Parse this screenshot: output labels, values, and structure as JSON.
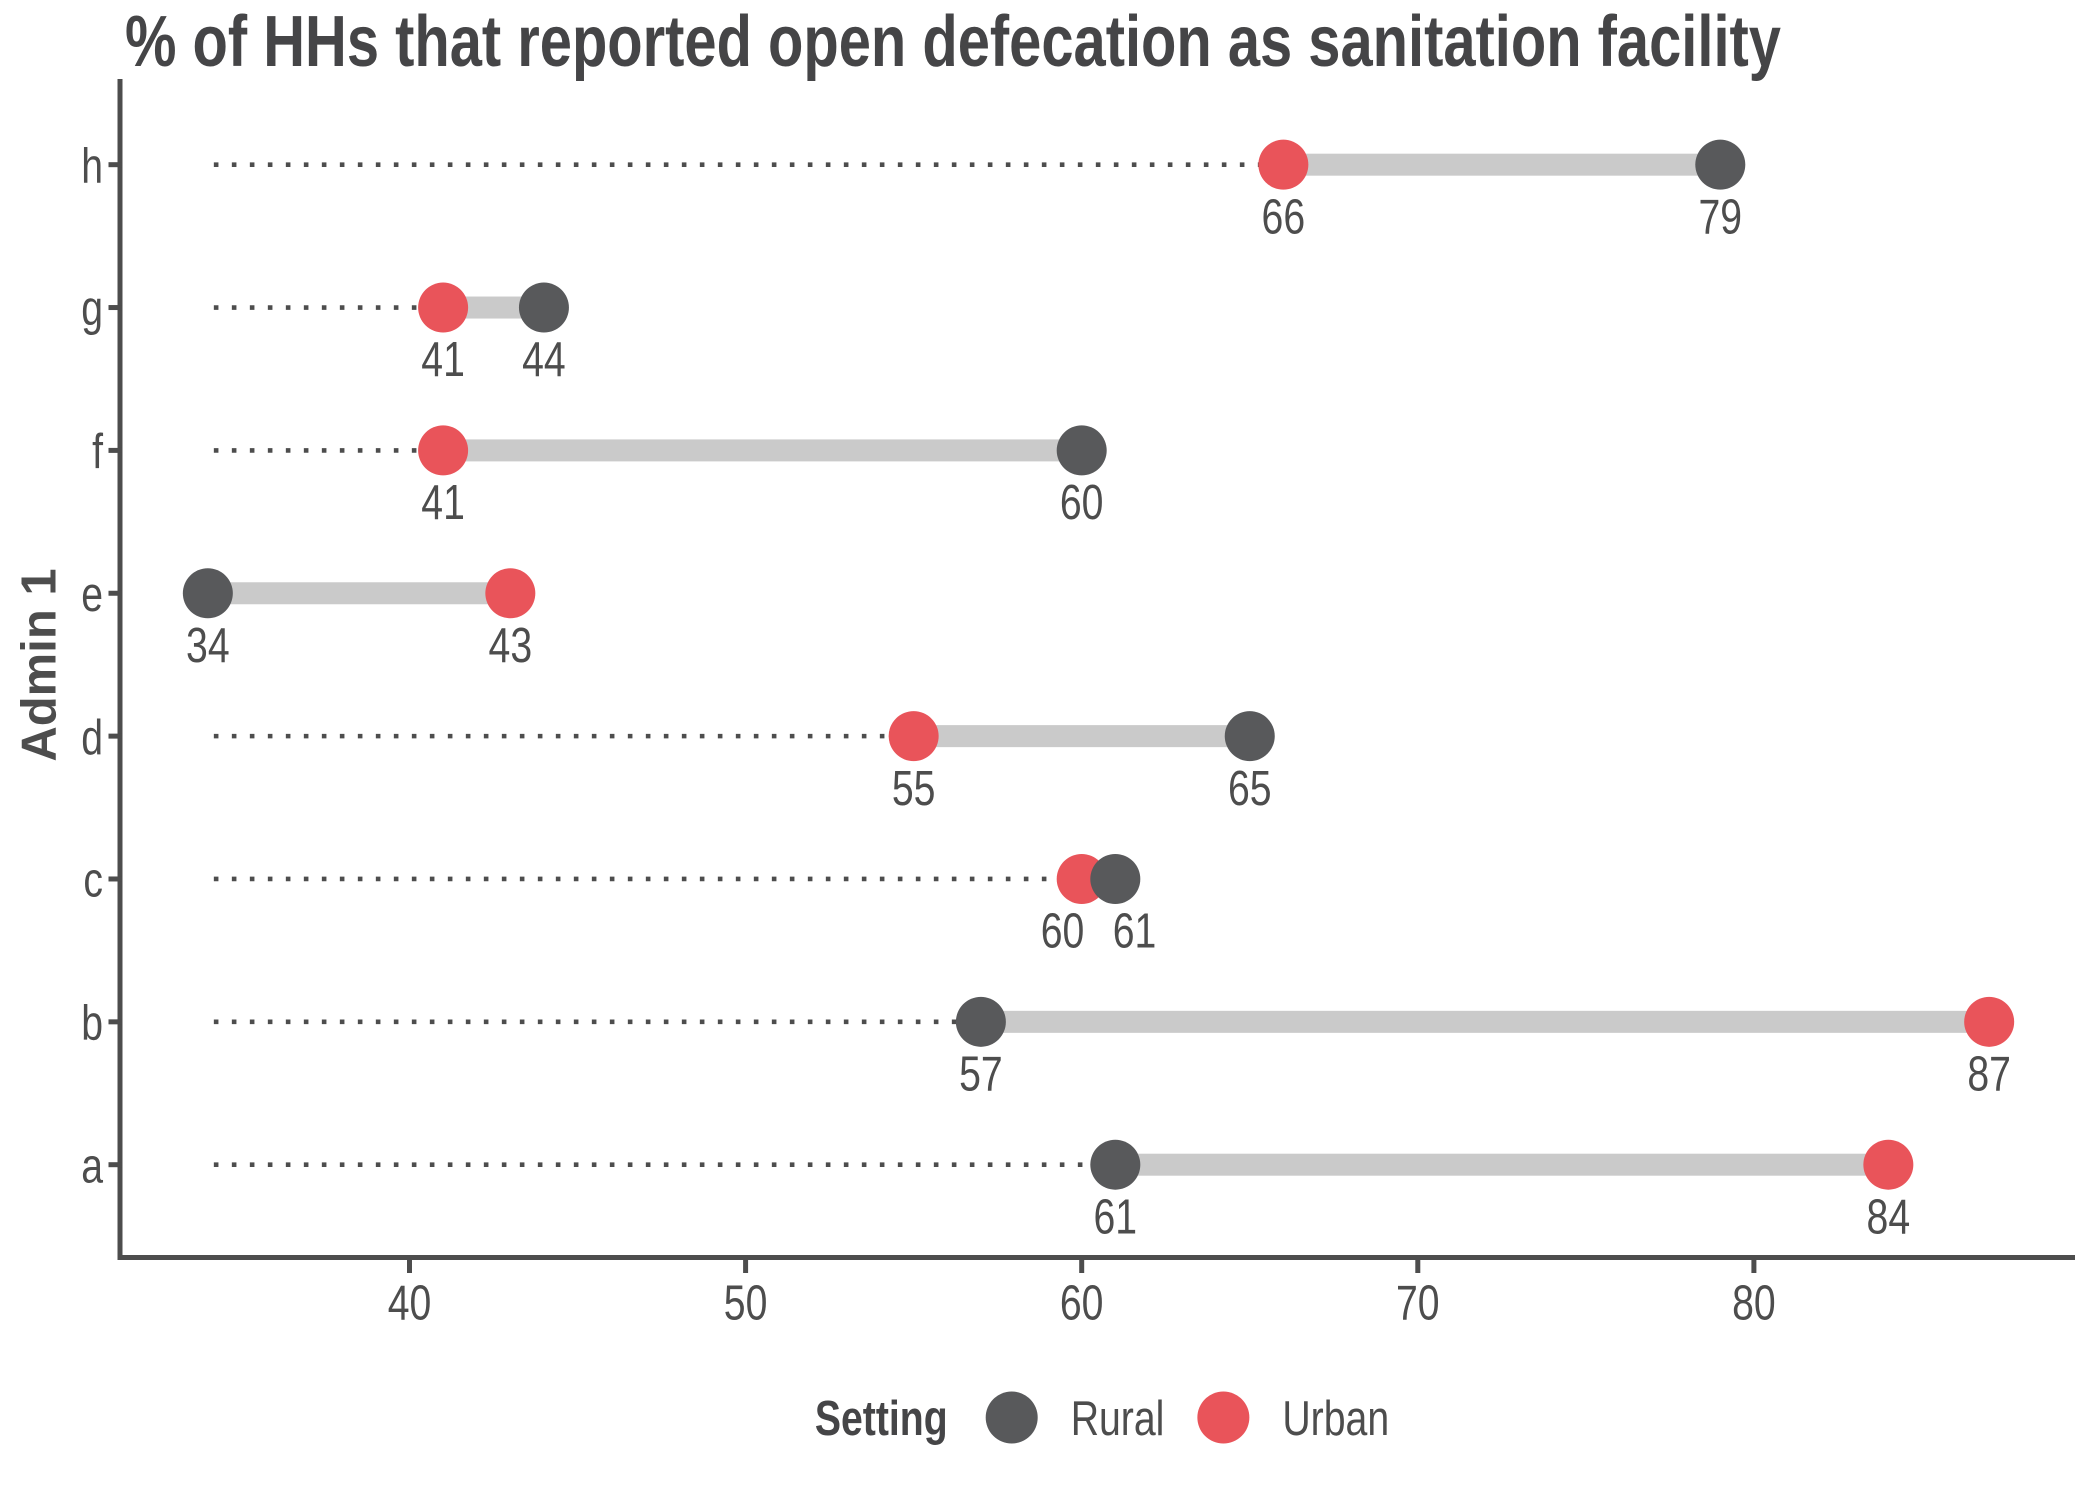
{
  "chart_data": {
    "type": "scatter",
    "variant": "dumbbell",
    "title": "% of HHs that reported open defecation as sanitation facility",
    "xlabel": "",
    "ylabel": "Admin 1",
    "xlim": [
      31.35,
      89.65
    ],
    "x_ticks": [
      40,
      50,
      60,
      70,
      80
    ],
    "grid": false,
    "leader_line_start_value": 34,
    "categories_top_to_bottom": [
      "h",
      "g",
      "f",
      "e",
      "d",
      "c",
      "b",
      "a"
    ],
    "series": [
      {
        "name": "Rural",
        "values_by_category": {
          "a": 61,
          "b": 57,
          "c": 61,
          "d": 65,
          "e": 34,
          "f": 60,
          "g": 44,
          "h": 79
        }
      },
      {
        "name": "Urban",
        "values_by_category": {
          "a": 84,
          "b": 87,
          "c": 60,
          "d": 55,
          "e": 43,
          "f": 41,
          "g": 41,
          "h": 66
        }
      }
    ],
    "rows": [
      {
        "admin1": "h",
        "rural": 79,
        "urban": 66,
        "rural_label": "79",
        "urban_label": "66"
      },
      {
        "admin1": "g",
        "rural": 44,
        "urban": 41,
        "rural_label": "44",
        "urban_label": "41"
      },
      {
        "admin1": "f",
        "rural": 60,
        "urban": 41,
        "rural_label": "60",
        "urban_label": "41"
      },
      {
        "admin1": "e",
        "rural": 34,
        "urban": 43,
        "rural_label": "34",
        "urban_label": "43"
      },
      {
        "admin1": "d",
        "rural": 65,
        "urban": 55,
        "rural_label": "65",
        "urban_label": "55"
      },
      {
        "admin1": "c",
        "rural": 61,
        "urban": 60,
        "rural_label": "61",
        "urban_label": "60"
      },
      {
        "admin1": "b",
        "rural": 57,
        "urban": 87,
        "rural_label": "57",
        "urban_label": "87"
      },
      {
        "admin1": "a",
        "rural": 61,
        "urban": 84,
        "rural_label": "61",
        "urban_label": "84"
      }
    ],
    "legend": {
      "title": "Setting",
      "position": "bottom",
      "entries": [
        {
          "label": "Rural",
          "color": "#58595b"
        },
        {
          "label": "Urban",
          "color": "#e9545a"
        }
      ]
    },
    "colors": {
      "rural_dot": "#58595b",
      "urban_dot": "#e9545a",
      "connector_bar": "#cacaca",
      "leader_dots": "#4d4d4d",
      "axis_line": "#4d4d4d",
      "axis_text": "#4d4d4d",
      "value_label_text": "#4d4d4d",
      "title_text": "#454547",
      "background": "#ffffff"
    }
  }
}
